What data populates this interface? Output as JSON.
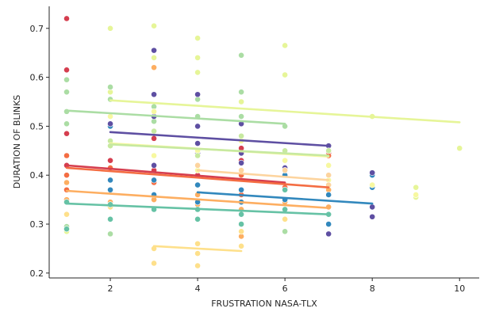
{
  "chart_data": {
    "type": "scatter",
    "title": "",
    "xlabel": "FRUSTRATION NASA-TLX",
    "ylabel": "DURATION OF BLINKS",
    "xlim": [
      0.6,
      10.45
    ],
    "ylim": [
      0.19,
      0.745
    ],
    "x_ticks": [
      2,
      4,
      6,
      8,
      10
    ],
    "x_tick_labels": [
      "2",
      "4",
      "6",
      "8",
      "10"
    ],
    "y_ticks": [
      0.2,
      0.3,
      0.4,
      0.5,
      0.6,
      0.7
    ],
    "y_tick_labels": [
      "0.2",
      "0.3",
      "0.4",
      "0.5",
      "0.6",
      "0.7"
    ],
    "grid": false,
    "legend": "none",
    "colormap": "Spectral",
    "series": [
      {
        "color": "#d53e4f",
        "points": [
          [
            1,
            0.72
          ],
          [
            1,
            0.615
          ],
          [
            1,
            0.485
          ],
          [
            1,
            0.42
          ],
          [
            2,
            0.43
          ],
          [
            3,
            0.475
          ],
          [
            3,
            0.41
          ],
          [
            4,
            0.4
          ],
          [
            5,
            0.43
          ],
          [
            5,
            0.455
          ],
          [
            6,
            0.4
          ],
          [
            7,
            0.445
          ]
        ],
        "fit": [
          [
            1,
            0.42
          ],
          [
            6,
            0.385
          ]
        ]
      },
      {
        "color": "#f46d43",
        "points": [
          [
            1,
            0.44
          ],
          [
            1,
            0.4
          ],
          [
            1,
            0.37
          ],
          [
            2,
            0.415
          ],
          [
            2,
            0.39
          ],
          [
            3,
            0.385
          ],
          [
            4,
            0.38
          ],
          [
            5,
            0.4
          ],
          [
            5,
            0.36
          ],
          [
            6,
            0.375
          ],
          [
            7,
            0.44
          ],
          [
            7,
            0.39
          ]
        ],
        "fit": [
          [
            1,
            0.415
          ],
          [
            7,
            0.375
          ]
        ]
      },
      {
        "color": "#fdae61",
        "points": [
          [
            1,
            0.385
          ],
          [
            1,
            0.35
          ],
          [
            2,
            0.37
          ],
          [
            2,
            0.345
          ],
          [
            3,
            0.62
          ],
          [
            3,
            0.35
          ],
          [
            4,
            0.36
          ],
          [
            4,
            0.34
          ],
          [
            5,
            0.275
          ],
          [
            5,
            0.33
          ],
          [
            6,
            0.345
          ],
          [
            7,
            0.335
          ],
          [
            7,
            0.37
          ]
        ],
        "fit": [
          [
            1,
            0.368
          ],
          [
            7,
            0.333
          ]
        ]
      },
      {
        "color": "#fee08b",
        "points": [
          [
            1,
            0.32
          ],
          [
            2,
            0.335
          ],
          [
            3,
            0.25
          ],
          [
            3,
            0.22
          ],
          [
            4,
            0.26
          ],
          [
            4,
            0.215
          ],
          [
            4,
            0.24
          ],
          [
            5,
            0.255
          ],
          [
            5,
            0.285
          ],
          [
            6,
            0.31
          ]
        ],
        "fit": [
          [
            3,
            0.255
          ],
          [
            5,
            0.245
          ]
        ]
      },
      {
        "color": "#e6f598",
        "points": [
          [
            1,
            0.285
          ],
          [
            2,
            0.7
          ],
          [
            2,
            0.57
          ],
          [
            3,
            0.705
          ],
          [
            3,
            0.64
          ],
          [
            4,
            0.68
          ],
          [
            4,
            0.64
          ],
          [
            4,
            0.61
          ],
          [
            5,
            0.55
          ],
          [
            6,
            0.665
          ],
          [
            6,
            0.605
          ],
          [
            8,
            0.52
          ],
          [
            9,
            0.375
          ],
          [
            9,
            0.355
          ],
          [
            10,
            0.455
          ]
        ],
        "fit": [
          [
            2,
            0.553
          ],
          [
            10,
            0.508
          ]
        ]
      },
      {
        "color": "#abdda4",
        "points": [
          [
            1,
            0.595
          ],
          [
            1,
            0.57
          ],
          [
            1,
            0.53
          ],
          [
            1,
            0.505
          ],
          [
            1,
            0.295
          ],
          [
            2,
            0.58
          ],
          [
            2,
            0.555
          ],
          [
            2,
            0.28
          ],
          [
            3,
            0.54
          ],
          [
            3,
            0.51
          ],
          [
            4,
            0.555
          ],
          [
            4,
            0.52
          ],
          [
            5,
            0.645
          ],
          [
            5,
            0.57
          ],
          [
            5,
            0.52
          ],
          [
            6,
            0.5
          ],
          [
            6,
            0.285
          ]
        ],
        "fit": [
          [
            1,
            0.532
          ],
          [
            6,
            0.505
          ]
        ]
      },
      {
        "color": "#66c2a5",
        "points": [
          [
            1,
            0.345
          ],
          [
            1,
            0.29
          ],
          [
            2,
            0.34
          ],
          [
            2,
            0.31
          ],
          [
            3,
            0.33
          ],
          [
            4,
            0.33
          ],
          [
            4,
            0.31
          ],
          [
            5,
            0.32
          ],
          [
            5,
            0.3
          ],
          [
            6,
            0.37
          ],
          [
            6,
            0.33
          ],
          [
            7,
            0.32
          ]
        ],
        "fit": [
          [
            1,
            0.342
          ],
          [
            7,
            0.32
          ]
        ]
      },
      {
        "color": "#3288bd",
        "points": [
          [
            2,
            0.5
          ],
          [
            2,
            0.39
          ],
          [
            2,
            0.37
          ],
          [
            3,
            0.39
          ],
          [
            3,
            0.36
          ],
          [
            4,
            0.41
          ],
          [
            4,
            0.38
          ],
          [
            4,
            0.345
          ],
          [
            5,
            0.37
          ],
          [
            5,
            0.345
          ],
          [
            6,
            0.4
          ],
          [
            6,
            0.35
          ],
          [
            7,
            0.36
          ],
          [
            7,
            0.3
          ],
          [
            8,
            0.4
          ],
          [
            8,
            0.375
          ]
        ],
        "fit": [
          [
            4,
            0.365
          ],
          [
            8,
            0.342
          ]
        ]
      },
      {
        "color": "#5e4fa2",
        "points": [
          [
            2,
            0.505
          ],
          [
            3,
            0.655
          ],
          [
            3,
            0.565
          ],
          [
            3,
            0.52
          ],
          [
            3,
            0.42
          ],
          [
            4,
            0.565
          ],
          [
            4,
            0.5
          ],
          [
            4,
            0.465
          ],
          [
            4,
            0.445
          ],
          [
            5,
            0.505
          ],
          [
            5,
            0.445
          ],
          [
            5,
            0.425
          ],
          [
            6,
            0.43
          ],
          [
            6,
            0.415
          ],
          [
            7,
            0.46
          ],
          [
            7,
            0.28
          ],
          [
            8,
            0.405
          ],
          [
            8,
            0.335
          ],
          [
            8,
            0.315
          ]
        ],
        "fit": [
          [
            2,
            0.488
          ],
          [
            7,
            0.46
          ]
        ]
      },
      {
        "color": "#f7f8a0",
        "points": [
          [
            2,
            0.52
          ],
          [
            3,
            0.53
          ],
          [
            3,
            0.44
          ],
          [
            4,
            0.45
          ],
          [
            4,
            0.41
          ],
          [
            5,
            0.41
          ],
          [
            5,
            0.47
          ],
          [
            6,
            0.43
          ],
          [
            7,
            0.42
          ],
          [
            7,
            0.39
          ],
          [
            8,
            0.38
          ],
          [
            9,
            0.36
          ]
        ],
        "fit": [
          [
            2,
            0.465
          ],
          [
            7,
            0.438
          ]
        ]
      },
      {
        "color": "#c7e9a0",
        "points": [
          [
            2,
            0.47
          ],
          [
            2,
            0.46
          ],
          [
            3,
            0.49
          ],
          [
            4,
            0.44
          ],
          [
            5,
            0.48
          ],
          [
            6,
            0.45
          ],
          [
            7,
            0.45
          ]
        ],
        "fit": [
          [
            2,
            0.463
          ],
          [
            7,
            0.44
          ]
        ]
      },
      {
        "color": "#fdd49e",
        "points": [
          [
            4,
            0.42
          ],
          [
            5,
            0.41
          ],
          [
            6,
            0.41
          ],
          [
            7,
            0.4
          ],
          [
            7,
            0.38
          ]
        ],
        "fit": [
          [
            4,
            0.41
          ],
          [
            7,
            0.39
          ]
        ]
      }
    ]
  }
}
